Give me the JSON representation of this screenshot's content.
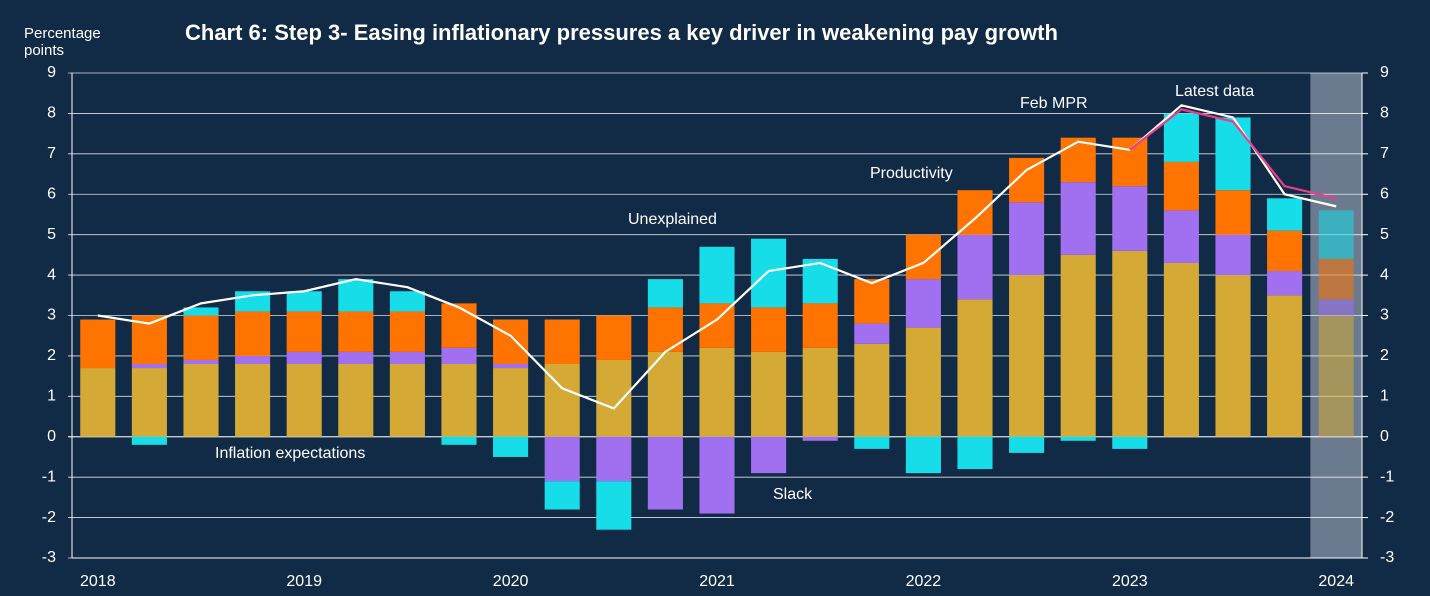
{
  "chart_data": {
    "type": "bar",
    "stacked": true,
    "title": "Chart 6: Step 3- Easing inflationary pressures a key driver in weakening pay growth",
    "ylabel": "Percentage points",
    "categories": [
      "2018",
      null,
      null,
      null,
      "2019",
      null,
      null,
      null,
      "2020",
      null,
      null,
      null,
      "2021",
      null,
      null,
      null,
      "2022",
      null,
      null,
      null,
      "2023",
      null,
      null,
      null,
      "2024"
    ],
    "series": [
      {
        "name": "Inflation expectations",
        "color": "#d4a935",
        "values": [
          1.7,
          1.7,
          1.8,
          1.8,
          1.8,
          1.8,
          1.8,
          1.8,
          1.7,
          1.8,
          1.9,
          2.1,
          2.2,
          2.1,
          2.2,
          2.3,
          2.7,
          3.4,
          4.0,
          4.5,
          4.6,
          4.3,
          4.0,
          3.5,
          3.0
        ]
      },
      {
        "name": "Slack",
        "color": "#a070f0",
        "values": [
          0,
          0.1,
          0.1,
          0.2,
          0.3,
          0.3,
          0.3,
          0.4,
          0.1,
          -1.1,
          -1.1,
          -1.8,
          -1.9,
          -0.9,
          -0.1,
          0.5,
          1.2,
          1.6,
          1.8,
          1.8,
          1.6,
          1.3,
          1.0,
          0.6,
          0.4
        ]
      },
      {
        "name": "Productivity",
        "color": "#ff7300",
        "values": [
          1.2,
          1.2,
          1.1,
          1.1,
          1.0,
          1.0,
          1.0,
          1.1,
          1.1,
          1.1,
          1.1,
          1.1,
          1.1,
          1.1,
          1.1,
          1.1,
          1.1,
          1.1,
          1.1,
          1.1,
          1.2,
          1.2,
          1.1,
          1.0,
          1.0
        ]
      },
      {
        "name": "Unexplained",
        "color": "#16dde8",
        "values": [
          0,
          -0.2,
          0.2,
          0.5,
          0.5,
          0.8,
          0.5,
          -0.2,
          -0.5,
          -0.7,
          -1.2,
          0.7,
          1.4,
          1.7,
          1.1,
          -0.3,
          -0.9,
          -0.8,
          -0.4,
          -0.1,
          -0.3,
          1.2,
          1.8,
          0.8,
          1.2
        ]
      }
    ],
    "lines": [
      {
        "name": "Feb MPR",
        "color": "#ffffff",
        "values": [
          3.0,
          2.8,
          3.3,
          3.5,
          3.6,
          3.9,
          3.7,
          3.2,
          2.5,
          1.2,
          0.7,
          2.1,
          2.9,
          4.1,
          4.3,
          3.8,
          4.3,
          5.4,
          6.6,
          7.3,
          7.1,
          8.2,
          7.9,
          6.0,
          5.7
        ]
      },
      {
        "name": "Latest data",
        "color": "#e83e8c",
        "values": [
          null,
          null,
          null,
          null,
          null,
          null,
          null,
          null,
          null,
          null,
          null,
          null,
          null,
          null,
          null,
          null,
          null,
          null,
          null,
          null,
          7.1,
          8.1,
          7.8,
          6.2,
          5.9
        ]
      }
    ],
    "ylim": [
      -3,
      9
    ],
    "yticks": [
      -3,
      -2,
      -1,
      0,
      1,
      2,
      3,
      4,
      5,
      6,
      7,
      8,
      9
    ],
    "y2lim": [
      -3,
      9
    ],
    "y2ticks": [
      -3,
      -2,
      -1,
      0,
      1,
      2,
      3,
      4,
      5,
      6,
      7,
      8,
      9
    ],
    "grid": true
  }
}
